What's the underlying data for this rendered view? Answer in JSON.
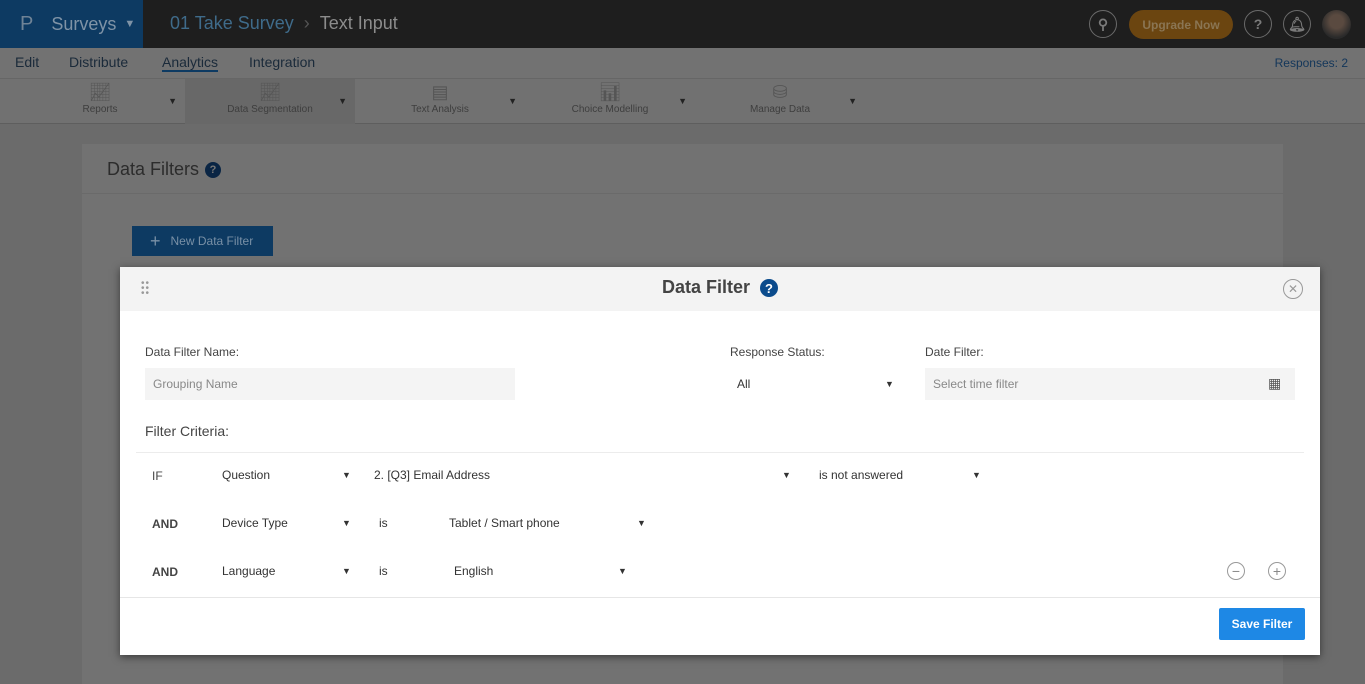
{
  "topbar": {
    "brand": "Surveys",
    "breadcrumb": [
      "01 Take Survey",
      "Text Input"
    ],
    "upgrade": "Upgrade Now"
  },
  "nav": {
    "items": [
      "Edit",
      "Distribute",
      "Analytics",
      "Integration"
    ],
    "active": "Analytics",
    "responses": "Responses: 2"
  },
  "toolbar": {
    "items": [
      "Reports",
      "Data Segmentation",
      "Text Analysis",
      "Choice Modelling",
      "Manage Data"
    ],
    "selected": "Data Segmentation"
  },
  "page": {
    "title": "Data Filters",
    "new_button": "New Data Filter"
  },
  "modal": {
    "title": "Data Filter",
    "name_label": "Data Filter Name:",
    "name_placeholder": "Grouping Name",
    "status_label": "Response Status:",
    "status_value": "All",
    "date_label": "Date Filter:",
    "date_placeholder": "Select time filter",
    "criteria_label": "Filter Criteria:",
    "rows": [
      {
        "conj": "IF",
        "field": "Question",
        "op": "2. [Q3] Email Address",
        "value": "is not answered"
      },
      {
        "conj": "AND",
        "field": "Device Type",
        "op": "is",
        "value": "Tablet / Smart phone"
      },
      {
        "conj": "AND",
        "field": "Language",
        "op": "is",
        "value": "English"
      }
    ],
    "save": "Save Filter"
  },
  "colors": {
    "brand": "#0d3a62",
    "accent": "#1e88e5",
    "upgrade": "#e8951f"
  }
}
